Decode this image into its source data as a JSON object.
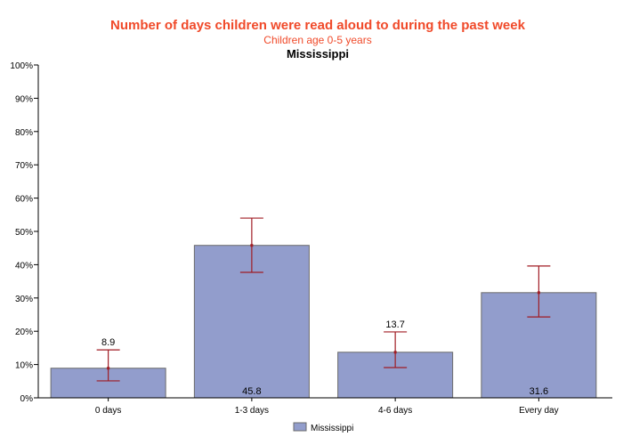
{
  "chart_data": {
    "type": "bar",
    "title": "Number of days children were read aloud to during the past week",
    "subtitle": "Children age 0-5 years",
    "subtitle2": "Mississippi",
    "categories": [
      "0 days",
      "1-3 days",
      "4-6 days",
      "Every day"
    ],
    "series": [
      {
        "name": "Mississippi",
        "values": [
          8.9,
          45.8,
          13.7,
          31.6
        ],
        "ci_low": [
          5.1,
          37.7,
          9.1,
          24.3
        ],
        "ci_high": [
          14.4,
          54.0,
          19.8,
          39.6
        ]
      }
    ],
    "ylim": [
      0,
      100
    ],
    "yticks": [
      "0%",
      "10%",
      "20%",
      "30%",
      "40%",
      "50%",
      "60%",
      "70%",
      "80%",
      "90%",
      "100%"
    ],
    "grid": false,
    "legend": "bottom",
    "colors": {
      "bar": "#929dcc",
      "bar_border": "#6b6b6b",
      "error": "#a01c24",
      "title": "#f04a2a"
    }
  }
}
